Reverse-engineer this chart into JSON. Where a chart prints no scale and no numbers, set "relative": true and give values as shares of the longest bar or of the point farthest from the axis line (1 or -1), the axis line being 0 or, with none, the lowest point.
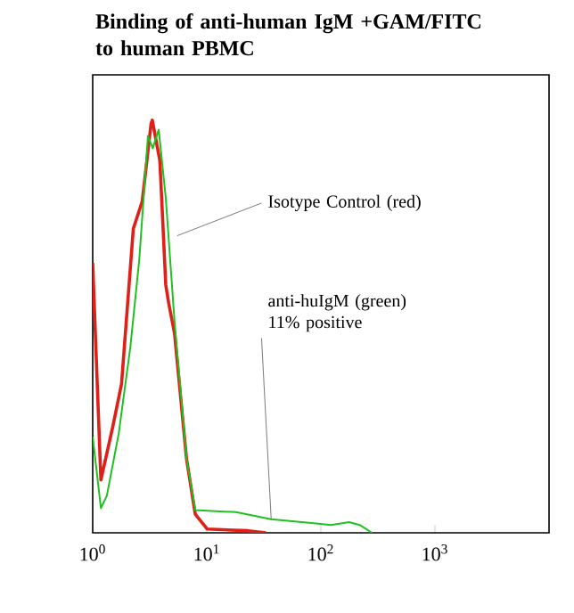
{
  "chart_data": {
    "type": "line",
    "title": "Binding of anti-human IgM +GAM/FITC to human PBMC",
    "relative": true,
    "log": "x",
    "xlim": [
      1,
      10000
    ],
    "xticks": [
      {
        "value": 1,
        "label": "10$^{0}$"
      },
      {
        "value": 10,
        "label": "10$^{1}$"
      },
      {
        "value": 100,
        "label": "10$^{2}$"
      },
      {
        "value": 1000,
        "label": "10$^{3}$"
      }
    ],
    "series": [
      {
        "color": "#e02018",
        "x": [
          1,
          1.18,
          1.5,
          1.79,
          2.27,
          2.72,
          3.25,
          3.33,
          3.88,
          4.37,
          4.64,
          5.22,
          6.64,
          7.93,
          10.1,
          23.1,
          33
        ],
        "values": [
          0.654,
          0.128,
          0.257,
          0.361,
          0.737,
          0.804,
          0.992,
          1.0,
          0.902,
          0.601,
          0.556,
          0.483,
          0.18,
          0.045,
          0.009,
          0.005,
          0
        ]
      },
      {
        "color": "#20c020",
        "x": [
          1,
          1.18,
          1.33,
          1.69,
          2.14,
          2.56,
          3.05,
          3.36,
          3.79,
          4.37,
          5.22,
          6.64,
          7.93,
          18.0,
          36.7,
          86.5,
          123,
          177,
          219,
          281
        ],
        "values": [
          0.233,
          0.06,
          0.09,
          0.24,
          0.451,
          0.662,
          0.962,
          0.932,
          0.977,
          0.812,
          0.511,
          0.18,
          0.055,
          0.05,
          0.033,
          0.023,
          0.019,
          0.026,
          0.019,
          0
        ]
      }
    ],
    "annotations": [
      {
        "text": "Isotype Control (red)",
        "x": 5.5,
        "y": 0.72
      },
      {
        "text": "anti-huIgM (green) 11% positive",
        "x": 36.7,
        "y": 0.033
      }
    ]
  }
}
